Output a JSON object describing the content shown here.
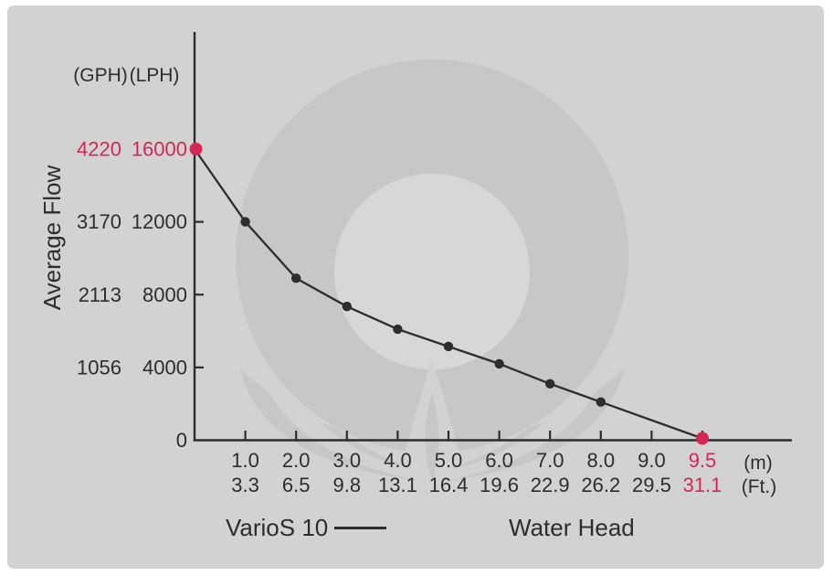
{
  "figure": {
    "page_bg": "#ffffff",
    "panel_bg": "#d2d2d3",
    "ink": "#2d2d2f",
    "accent": "#d22855",
    "watermark": "#c7c7c9",
    "watermark_inner": "#d7d7d8"
  },
  "chart_data": {
    "type": "line",
    "title": "",
    "ylabel": "Average Flow",
    "xlabel": "Water Head",
    "y_units": [
      "(GPH)",
      "(LPH)"
    ],
    "x_units": [
      "(m)",
      "(Ft.)"
    ],
    "ylim": [
      0,
      16000
    ],
    "grid": false,
    "legend_position": "bottom-left",
    "y_ticks": [
      {
        "gph": "4220",
        "lph": "16000",
        "value": 16000,
        "accent": true
      },
      {
        "gph": "3170",
        "lph": "12000",
        "value": 12000,
        "accent": false
      },
      {
        "gph": "2113",
        "lph": "8000",
        "value": 8000,
        "accent": false
      },
      {
        "gph": "1056",
        "lph": "4000",
        "value": 4000,
        "accent": false
      },
      {
        "gph": "",
        "lph": "0",
        "value": 0,
        "accent": false
      }
    ],
    "x_ticks": [
      {
        "m": "1.0",
        "ft": "3.3",
        "slot": 1,
        "accent": false
      },
      {
        "m": "2.0",
        "ft": "6.5",
        "slot": 2,
        "accent": false
      },
      {
        "m": "3.0",
        "ft": "9.8",
        "slot": 3,
        "accent": false
      },
      {
        "m": "4.0",
        "ft": "13.1",
        "slot": 4,
        "accent": false
      },
      {
        "m": "5.0",
        "ft": "16.4",
        "slot": 5,
        "accent": false
      },
      {
        "m": "6.0",
        "ft": "19.6",
        "slot": 6,
        "accent": false
      },
      {
        "m": "7.0",
        "ft": "22.9",
        "slot": 7,
        "accent": false
      },
      {
        "m": "8.0",
        "ft": "26.2",
        "slot": 8,
        "accent": false
      },
      {
        "m": "9.0",
        "ft": "29.5",
        "slot": 9,
        "accent": false
      },
      {
        "m": "9.5",
        "ft": "31.1",
        "slot": 10,
        "accent": true
      }
    ],
    "series": [
      {
        "name": "VarioS 10",
        "points": [
          {
            "head_m": 0,
            "flow_lph": 16000,
            "slot": 0,
            "accent": true
          },
          {
            "head_m": 1.0,
            "flow_lph": 12000,
            "slot": 1,
            "accent": false
          },
          {
            "head_m": 2.0,
            "flow_lph": 8900,
            "slot": 2,
            "accent": false
          },
          {
            "head_m": 3.0,
            "flow_lph": 7350,
            "slot": 3,
            "accent": false
          },
          {
            "head_m": 4.0,
            "flow_lph": 6100,
            "slot": 4,
            "accent": false
          },
          {
            "head_m": 5.0,
            "flow_lph": 5150,
            "slot": 5,
            "accent": false
          },
          {
            "head_m": 6.0,
            "flow_lph": 4200,
            "slot": 6,
            "accent": false
          },
          {
            "head_m": 7.0,
            "flow_lph": 3100,
            "slot": 7,
            "accent": false
          },
          {
            "head_m": 8.0,
            "flow_lph": 2100,
            "slot": 8,
            "accent": false
          },
          {
            "head_m": 9.5,
            "flow_lph": 100,
            "slot": 10,
            "accent": true
          }
        ]
      }
    ]
  }
}
